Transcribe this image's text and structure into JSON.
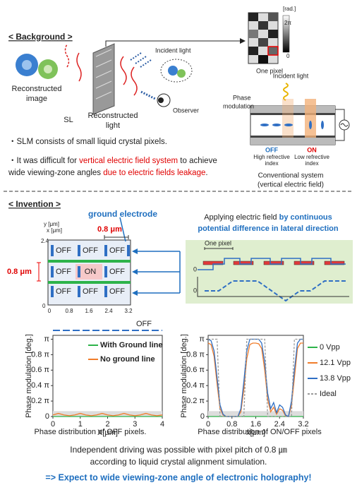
{
  "background": {
    "heading": "< Background >",
    "reconstructed_image": [
      "Reconstructed",
      "image"
    ],
    "sl": "SL",
    "reconstructed_light": [
      "Reconstructed",
      "light"
    ],
    "incident_light": "Incident light",
    "observer": "Observer",
    "colorbar_unit": "[rad.]",
    "colorbar_top": "2π",
    "colorbar_bottom": "0",
    "one_pixel": "One pixel",
    "conventional": {
      "incident_light": "Incident light",
      "phase_modulation": [
        "Phase",
        "modulation"
      ],
      "off": "OFF",
      "off_desc": [
        "High refrective",
        "index"
      ],
      "on": "ON",
      "on_desc": [
        "Low refrective",
        "index"
      ],
      "caption": [
        "Conventional system",
        "(vertical electric field)"
      ]
    },
    "bullets": [
      [
        [
          {
            "text": "・SLM consists of  small liquid crystal pixels.",
            "red": false
          }
        ]
      ],
      [
        [
          {
            "text": "・It was difficult for ",
            "red": false
          },
          {
            "text": "vertical electric field system",
            "red": true
          },
          {
            "text": " to achieve",
            "red": false
          }
        ],
        [
          {
            "text": "  wide viewing-zone angles ",
            "red": false
          },
          {
            "text": "due to electric fields leakage",
            "red": true
          },
          {
            "text": ".",
            "red": false
          }
        ]
      ]
    ]
  },
  "invention": {
    "heading": "< Invention >",
    "ground_electrode": "ground electrode",
    "y_axis": "y [μm]",
    "x_axis": "x [μm]",
    "pitch_top": "0.8 μm",
    "pitch_left": "0.8 μm",
    "y_ticks": [
      "2.4",
      "0"
    ],
    "x_ticks": [
      "0",
      "0.8",
      "1.6",
      "2.4",
      "3.2"
    ],
    "pixel_rows": [
      [
        "OFF",
        "OFF",
        "OFF"
      ],
      [
        "OFF",
        "ON",
        "OFF"
      ],
      [
        "OFF",
        "OFF",
        "OFF"
      ]
    ],
    "applying": [
      [
        {
          "text": "Applying electric field ",
          "blue": false
        },
        {
          "text": "by continuous",
          "blue": true
        }
      ],
      [
        {
          "text": "potential difference in lateral direction",
          "blue": true
        }
      ]
    ],
    "one_pixel": "One pixel",
    "wave_zero": [
      "0",
      "0"
    ]
  },
  "chart_data": [
    {
      "type": "line",
      "title": "Phase distribution of OFF pixels.",
      "annotation": "OFF",
      "xlabel": "X[μm]",
      "ylabel": "Phase modulation [deg.]",
      "legend": "inside-top",
      "x": [
        0,
        0.2,
        0.4,
        0.6,
        0.8,
        1,
        1.2,
        1.4,
        1.6,
        1.8,
        2,
        2.2,
        2.4,
        2.6,
        2.8,
        3,
        3.2,
        3.4,
        3.6,
        3.8,
        4
      ],
      "xlim": [
        0,
        4
      ],
      "xticks": [
        0,
        1,
        2,
        3,
        4
      ],
      "ylim": [
        0,
        1.05
      ],
      "yticks": [
        0,
        {
          "value": 0.2,
          "label": "0.2 π"
        },
        {
          "value": 0.4,
          "label": "0.4 π"
        },
        {
          "value": 0.6,
          "label": "0.6 π"
        },
        {
          "value": 0.8,
          "label": "0.8 π"
        },
        {
          "value": 1,
          "label": "π"
        }
      ],
      "series": [
        {
          "name": "With Ground line",
          "color": "#2db34a",
          "dashed": false,
          "values": [
            0,
            0,
            0,
            0,
            0,
            0,
            0,
            0,
            0,
            0,
            0,
            0,
            0,
            0,
            0,
            0,
            0,
            0,
            0,
            0,
            0
          ]
        },
        {
          "name": "No ground line",
          "color": "#f07c2a",
          "dashed": false,
          "values": [
            0.02,
            0.04,
            0.02,
            0.01,
            0.02,
            0.04,
            0.02,
            0.01,
            0.02,
            0.04,
            0.02,
            0.01,
            0.02,
            0.04,
            0.02,
            0.01,
            0.02,
            0.04,
            0.02,
            0.01,
            0.02
          ]
        }
      ]
    },
    {
      "type": "line",
      "title": "Phase distribution of ON/OFF pixels",
      "xlabel": "x[μm]",
      "ylabel": "Phase modulation [deg.]",
      "legend": "right",
      "x": [
        0,
        0.1,
        0.2,
        0.3,
        0.4,
        0.5,
        0.6,
        0.7,
        0.8,
        0.9,
        1,
        1.1,
        1.2,
        1.3,
        1.4,
        1.5,
        1.6,
        1.7,
        1.8,
        1.9,
        2,
        2.1,
        2.2,
        2.3,
        2.4,
        2.5,
        2.6,
        2.7,
        2.8,
        2.9,
        3,
        3.1,
        3.2
      ],
      "xlim": [
        0,
        3.2
      ],
      "xticks": [
        0,
        0.8,
        1.6,
        2.4,
        3.2
      ],
      "ylim": [
        0,
        1.05
      ],
      "yticks": [
        0,
        {
          "value": 0.2,
          "label": "0.2 π"
        },
        {
          "value": 0.4,
          "label": "0.4 π"
        },
        {
          "value": 0.6,
          "label": "0.6 π"
        },
        {
          "value": 0.8,
          "label": "0.8 π"
        },
        {
          "value": 1,
          "label": "π"
        }
      ],
      "series": [
        {
          "name": "0 Vpp",
          "color": "#2db34a",
          "dashed": false,
          "values": [
            0,
            0,
            0,
            0,
            0,
            0,
            0,
            0,
            0,
            0,
            0,
            0,
            0,
            0,
            0,
            0,
            0,
            0,
            0,
            0,
            0,
            0,
            0,
            0,
            0,
            0,
            0,
            0,
            0,
            0,
            0,
            0,
            0
          ]
        },
        {
          "name": "12.1 Vpp",
          "color": "#f07c2a",
          "dashed": false,
          "values": [
            0.95,
            0.93,
            0.78,
            0.42,
            0.1,
            0.02,
            0,
            0,
            0,
            0,
            0,
            0.06,
            0.35,
            0.75,
            0.93,
            0.95,
            0.95,
            0.94,
            0.88,
            0.6,
            0.22,
            0.06,
            0.12,
            0.03,
            0.1,
            0.08,
            0.01,
            0,
            0.14,
            0.5,
            0.88,
            0.95,
            0.95
          ]
        },
        {
          "name": "13.8 Vpp",
          "color": "#2f6fc4",
          "dashed": false,
          "values": [
            1,
            0.98,
            0.85,
            0.5,
            0.15,
            0.03,
            0,
            0,
            0,
            0,
            0,
            0.1,
            0.45,
            0.85,
            1,
            1,
            1,
            1,
            0.95,
            0.7,
            0.3,
            0.1,
            0.18,
            0.05,
            0.15,
            0.12,
            0.02,
            0,
            0.2,
            0.6,
            0.95,
            1,
            1
          ]
        },
        {
          "name": "Ideal",
          "color": "#999999",
          "dashed": true,
          "values": [
            1,
            1,
            1,
            1,
            0,
            0,
            0,
            0,
            0,
            0,
            0,
            0,
            0,
            1,
            1,
            1,
            1,
            1,
            1,
            1,
            0,
            0,
            0,
            0,
            0,
            0,
            0,
            0,
            0,
            1,
            1,
            1,
            1
          ]
        }
      ]
    }
  ],
  "conclusion": [
    "Independent driving was possible with pixel pitch of 0.8 ㎛",
    "according to liquid crystal alignment simulation."
  ],
  "expectation": "=> Expect to wide viewing-zone angle of electronic holography!"
}
